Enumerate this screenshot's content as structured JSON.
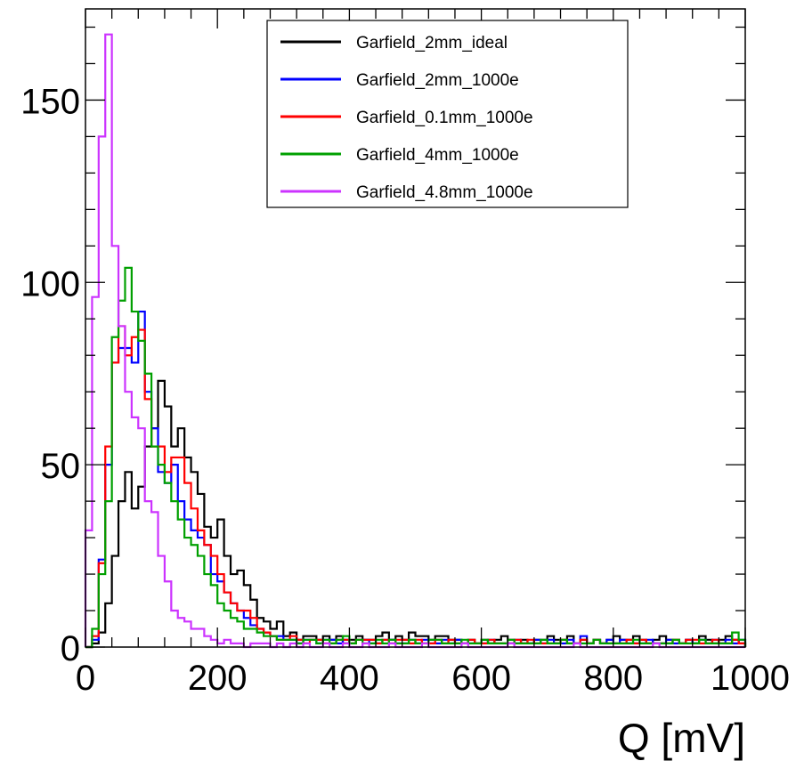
{
  "chart_data": {
    "type": "line",
    "style": "step-histogram",
    "title": "",
    "xlabel": "Q [mV]",
    "ylabel": "",
    "xlim": [
      0,
      1000
    ],
    "ylim": [
      0,
      175
    ],
    "xticks": [
      0,
      200,
      400,
      600,
      800,
      1000
    ],
    "yticks": [
      0,
      50,
      100,
      150
    ],
    "tick_labels_x": [
      "0",
      "200",
      "400",
      "600",
      "800",
      "1000"
    ],
    "tick_labels_y": [
      "0",
      "50",
      "100",
      "150"
    ],
    "bin_width": 10,
    "legend_position": "top-center",
    "grid": false,
    "series": [
      {
        "name": "Garfield_2mm_ideal",
        "color": "#000000",
        "values": [
          0,
          1,
          4,
          12,
          25,
          40,
          48,
          38,
          44,
          55,
          60,
          73,
          66,
          55,
          60,
          52,
          48,
          42,
          33,
          30,
          35,
          25,
          20,
          21,
          17,
          13,
          8,
          7,
          5,
          7,
          3,
          4,
          2,
          3,
          3,
          2,
          3,
          2,
          3,
          1,
          2,
          3,
          2,
          2,
          3,
          4,
          2,
          3,
          2,
          4,
          3,
          3,
          2,
          3,
          3,
          2,
          2,
          1,
          2,
          1,
          2,
          1,
          2,
          3,
          2,
          1,
          2,
          1,
          2,
          2,
          3,
          2,
          2,
          3,
          1,
          2,
          1,
          2,
          1,
          2,
          3,
          2,
          2,
          3,
          2,
          1,
          2,
          3,
          2,
          2,
          1,
          2,
          1,
          3,
          2,
          1,
          2,
          3,
          2,
          1
        ]
      },
      {
        "name": "Garfield_2mm_1000e",
        "color": "#0000ff",
        "values": [
          0,
          2,
          24,
          50,
          78,
          82,
          82,
          78,
          92,
          70,
          60,
          48,
          45,
          50,
          40,
          35,
          32,
          30,
          28,
          20,
          18,
          15,
          12,
          10,
          8,
          6,
          5,
          4,
          3,
          3,
          2,
          2,
          1,
          2,
          2,
          1,
          2,
          2,
          1,
          2,
          1,
          2,
          2,
          1,
          1,
          2,
          2,
          1,
          1,
          2,
          1,
          2,
          1,
          1,
          2,
          1,
          2,
          1,
          1,
          1,
          1,
          2,
          1,
          1,
          1,
          2,
          1,
          1,
          2,
          1,
          2,
          1,
          1,
          2,
          1,
          3,
          1,
          2,
          1,
          2,
          1,
          2,
          1,
          1,
          1,
          2,
          1,
          1,
          2,
          1,
          1,
          2,
          1,
          2,
          1,
          2,
          1,
          2,
          1,
          2
        ]
      },
      {
        "name": "Garfield_0.1mm_1000e",
        "color": "#ff0000",
        "values": [
          0,
          3,
          23,
          55,
          78,
          88,
          80,
          85,
          87,
          68,
          55,
          55,
          48,
          52,
          52,
          45,
          38,
          32,
          28,
          25,
          20,
          15,
          12,
          10,
          10,
          8,
          5,
          4,
          3,
          2,
          2,
          3,
          2,
          1,
          2,
          2,
          1,
          1,
          2,
          2,
          1,
          2,
          2,
          2,
          1,
          2,
          1,
          2,
          2,
          1,
          2,
          1,
          1,
          2,
          1,
          2,
          1,
          1,
          2,
          1,
          1,
          2,
          1,
          1,
          1,
          2,
          1,
          2,
          1,
          1,
          1,
          1,
          2,
          1,
          1,
          2,
          1,
          2,
          1,
          1,
          1,
          1,
          2,
          1,
          2,
          1,
          1,
          1,
          1,
          2,
          1,
          2,
          2,
          1,
          1,
          2,
          1,
          1,
          2,
          1
        ]
      },
      {
        "name": "Garfield_4mm_1000e",
        "color": "#00a000",
        "values": [
          0,
          5,
          20,
          40,
          85,
          95,
          104,
          92,
          84,
          75,
          55,
          50,
          45,
          40,
          35,
          30,
          28,
          25,
          20,
          17,
          12,
          10,
          8,
          7,
          5,
          5,
          4,
          3,
          3,
          2,
          2,
          2,
          1,
          2,
          2,
          1,
          2,
          1,
          2,
          3,
          1,
          2,
          1,
          1,
          2,
          1,
          2,
          1,
          1,
          2,
          1,
          1,
          2,
          2,
          1,
          1,
          1,
          2,
          1,
          1,
          2,
          1,
          1,
          1,
          2,
          1,
          1,
          1,
          1,
          2,
          1,
          1,
          2,
          1,
          1,
          1,
          1,
          2,
          1,
          1,
          1,
          1,
          1,
          2,
          1,
          1,
          1,
          1,
          1,
          2,
          1,
          1,
          1,
          2,
          1,
          1,
          1,
          1,
          4,
          2
        ]
      },
      {
        "name": "Garfield_4.8mm_1000e",
        "color": "#cc33ff",
        "values": [
          32,
          96,
          140,
          168,
          110,
          88,
          70,
          63,
          60,
          40,
          37,
          25,
          18,
          10,
          8,
          7,
          5,
          5,
          3,
          2,
          1,
          2,
          1,
          1,
          0,
          1,
          1,
          1,
          0,
          1,
          0,
          1,
          0,
          1,
          0,
          0,
          1,
          0,
          0,
          1,
          0,
          0,
          1,
          0,
          0,
          0,
          1,
          0,
          0,
          0,
          0,
          1,
          0,
          0,
          0,
          0,
          0,
          1,
          0,
          0,
          0,
          0,
          0,
          0,
          1,
          0,
          0,
          0,
          0,
          0,
          0,
          0,
          0,
          0,
          1,
          0,
          0,
          0,
          0,
          0,
          0,
          0,
          0,
          0,
          0,
          0,
          1,
          0,
          0,
          0,
          0,
          0,
          0,
          0,
          0,
          0,
          0,
          0,
          0,
          0
        ]
      }
    ]
  }
}
